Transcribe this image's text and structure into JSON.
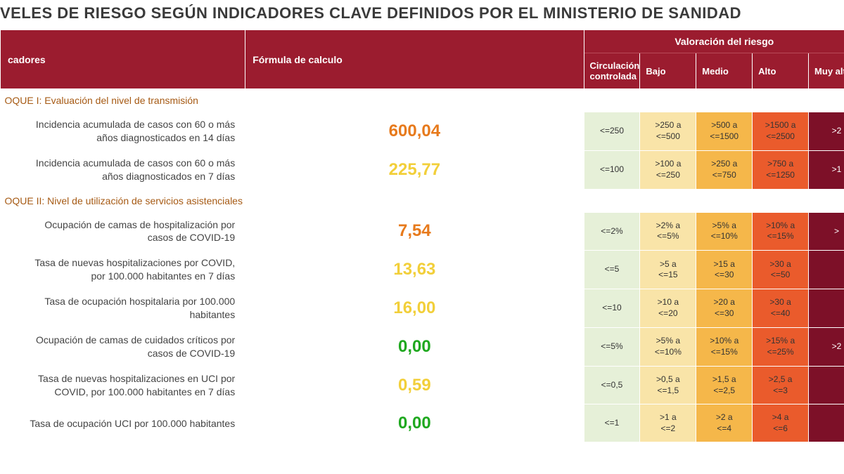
{
  "title": "VELES DE RIESGO SEGÚN INDICADORES CLAVE DEFINIDOS POR EL MINISTERIO DE SANIDAD",
  "headers": {
    "indicators": "cadores",
    "formula": "Fórmula de calculo",
    "risk_group": "Valoración del riesgo",
    "levels": [
      "Circulación controlada",
      "Bajo",
      "Medio",
      "Alto",
      "Muy alto"
    ]
  },
  "risk_colors": {
    "controlled": "#e6f0d8",
    "low": "#f9e4a8",
    "medium": "#f5b74a",
    "high": "#ea5b2c",
    "veryhigh": "#7d1028"
  },
  "value_colors": {
    "orange": "#e77a1c",
    "yellow": "#f2cf3a",
    "green": "#1fa81f"
  },
  "blocks": [
    {
      "label": "OQUE I: Evaluación del nivel de transmisión",
      "rows": [
        {
          "indicator": "Incidencia acumulada de casos con 60 o más años diagnosticados en 14 días",
          "value": "600,04",
          "value_color": "orange",
          "thresholds": [
            "<=250",
            ">250 a <=500",
            ">500 a <=1500",
            ">1500 a <=2500",
            ">2"
          ]
        },
        {
          "indicator": "Incidencia acumulada de casos con 60 o más años diagnosticados en 7 días",
          "value": "225,77",
          "value_color": "yellow",
          "thresholds": [
            "<=100",
            ">100 a <=250",
            ">250 a <=750",
            ">750 a <=1250",
            ">1"
          ]
        }
      ]
    },
    {
      "label": "OQUE II: Nivel de utilización de servicios asistenciales",
      "rows": [
        {
          "indicator": "Ocupación de camas de hospitalización por casos de COVID-19",
          "value": "7,54",
          "value_color": "orange",
          "thresholds": [
            "<=2%",
            ">2% a <=5%",
            ">5% a <=10%",
            ">10% a <=15%",
            ">"
          ]
        },
        {
          "indicator": "Tasa de nuevas hospitalizaciones por COVID, por 100.000 habitantes en 7 días",
          "value": "13,63",
          "value_color": "yellow",
          "thresholds": [
            "<=5",
            ">5 a <=15",
            ">15 a <=30",
            ">30 a <=50",
            ""
          ]
        },
        {
          "indicator": "Tasa de ocupación hospitalaria por 100.000 habitantes",
          "value": "16,00",
          "value_color": "yellow",
          "thresholds": [
            "<=10",
            ">10 a <=20",
            ">20 a <=30",
            ">30 a <=40",
            ""
          ]
        },
        {
          "indicator": "Ocupación de camas de cuidados críticos por casos de COVID-19",
          "value": "0,00",
          "value_color": "green",
          "thresholds": [
            "<=5%",
            ">5% a <=10%",
            ">10% a <=15%",
            ">15% a <=25%",
            ">2"
          ]
        },
        {
          "indicator": "Tasa de nuevas hospitalizaciones en UCI por COVID, por 100.000 habitantes en 7 días",
          "value": "0,59",
          "value_color": "yellow",
          "thresholds": [
            "<=0,5",
            ">0,5 a <=1,5",
            ">1,5 a <=2,5",
            ">2,5 a <=3",
            ""
          ]
        },
        {
          "indicator": "Tasa de ocupación UCI por 100.000 habitantes",
          "value": "0,00",
          "value_color": "green",
          "thresholds": [
            "<=1",
            ">1 a <=2",
            ">2 a <=4",
            ">4 a <=6",
            ""
          ]
        }
      ]
    }
  ]
}
